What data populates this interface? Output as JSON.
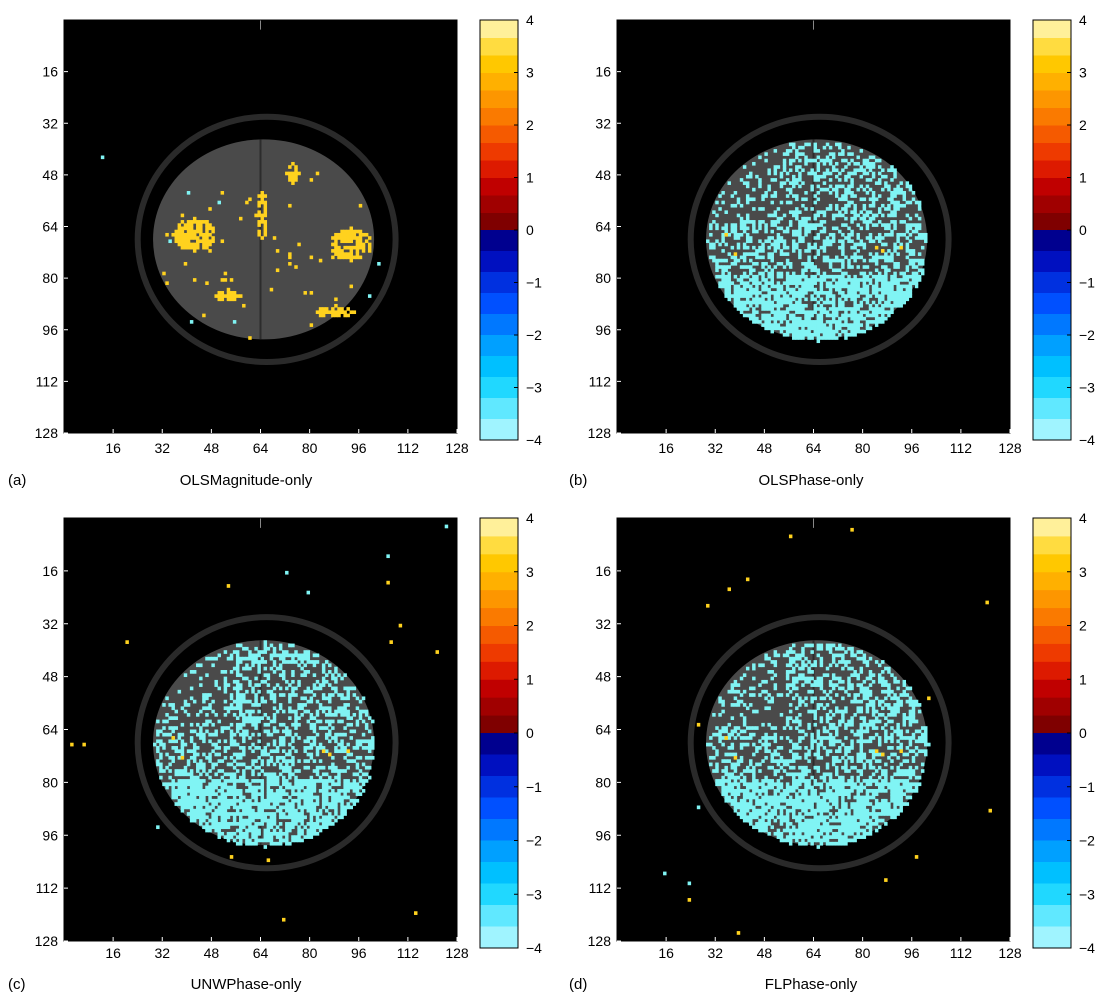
{
  "figure": {
    "colorbar": {
      "ticks": [
        "4",
        "3",
        "2",
        "1",
        "0",
        "−1",
        "−2",
        "−3",
        "−4"
      ],
      "range": [
        -4,
        4
      ],
      "positive_colors": [
        "#7f0000",
        "#a00000",
        "#c00000",
        "#dd1a00",
        "#ee3a00",
        "#f55a00",
        "#fa7a00",
        "#fd9600",
        "#ffb000",
        "#ffc800",
        "#ffdc40",
        "#fff09a"
      ],
      "negative_colors": [
        "#00008f",
        "#0010c0",
        "#0030e0",
        "#0050ff",
        "#0078ff",
        "#00a0ff",
        "#00c0ff",
        "#20d8ff",
        "#60e8ff",
        "#a0f4ff"
      ]
    },
    "overlay_colors": {
      "positive": "#ffd21e",
      "negative": "#80f4f4"
    },
    "panels": [
      {
        "label": "(a)",
        "title": "OLSMagnitude-only",
        "overlay": "magnitude"
      },
      {
        "label": "(b)",
        "title": "OLSPhase-only",
        "overlay": "phase"
      },
      {
        "label": "(c)",
        "title": "UNWPhase-only",
        "overlay": "phase-noisy"
      },
      {
        "label": "(d)",
        "title": "FLPhase-only",
        "overlay": "phase-noisy2"
      }
    ]
  },
  "chart_data": {
    "type": "heatmap",
    "xticks": [
      16,
      32,
      48,
      64,
      80,
      96,
      112,
      128
    ],
    "yticks": [
      16,
      32,
      48,
      64,
      80,
      96,
      112,
      128
    ],
    "xlim": [
      0,
      128
    ],
    "ylim": [
      0,
      128
    ],
    "clim": [
      -4,
      4
    ],
    "panels": [
      "OLSMagnitude-only",
      "OLSPhase-only",
      "UNWPhase-only",
      "FLPhase-only"
    ]
  }
}
